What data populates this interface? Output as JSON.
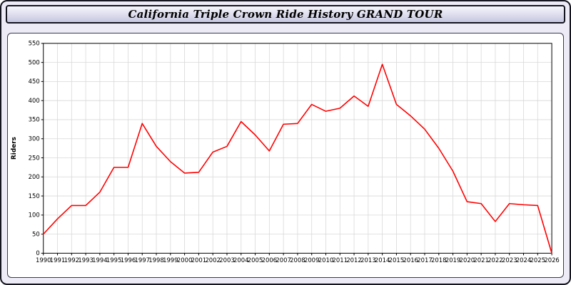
{
  "header": {
    "title": "California Triple Crown Ride History GRAND TOUR"
  },
  "chart_data": {
    "type": "line",
    "title": "California Triple Crown Ride History GRAND TOUR",
    "xlabel": "",
    "ylabel": "Riders",
    "x": [
      1990,
      1991,
      1992,
      1993,
      1994,
      1995,
      1996,
      1997,
      1998,
      1999,
      2000,
      2001,
      2002,
      2003,
      2004,
      2005,
      2006,
      2007,
      2008,
      2009,
      2010,
      2011,
      2012,
      2013,
      2014,
      2015,
      2016,
      2017,
      2018,
      2019,
      2020,
      2021,
      2022,
      2023,
      2024,
      2025,
      2026
    ],
    "series": [
      {
        "name": "Riders",
        "color": "#ff0000",
        "values": [
          50,
          90,
          125,
          125,
          160,
          225,
          225,
          340,
          280,
          240,
          210,
          212,
          265,
          280,
          345,
          310,
          268,
          338,
          340,
          390,
          372,
          380,
          412,
          385,
          495,
          390,
          360,
          325,
          275,
          215,
          135,
          130,
          83,
          130,
          127,
          125,
          0
        ]
      }
    ],
    "ylim": [
      0,
      550
    ],
    "ytick_step": 50,
    "grid": true,
    "legend": "none"
  },
  "colors": {
    "line": "#ff0000",
    "grid": "#d8d8d8",
    "axis": "#000000",
    "page_bg": "#ecebf6",
    "plot_bg": "#ffffff"
  }
}
